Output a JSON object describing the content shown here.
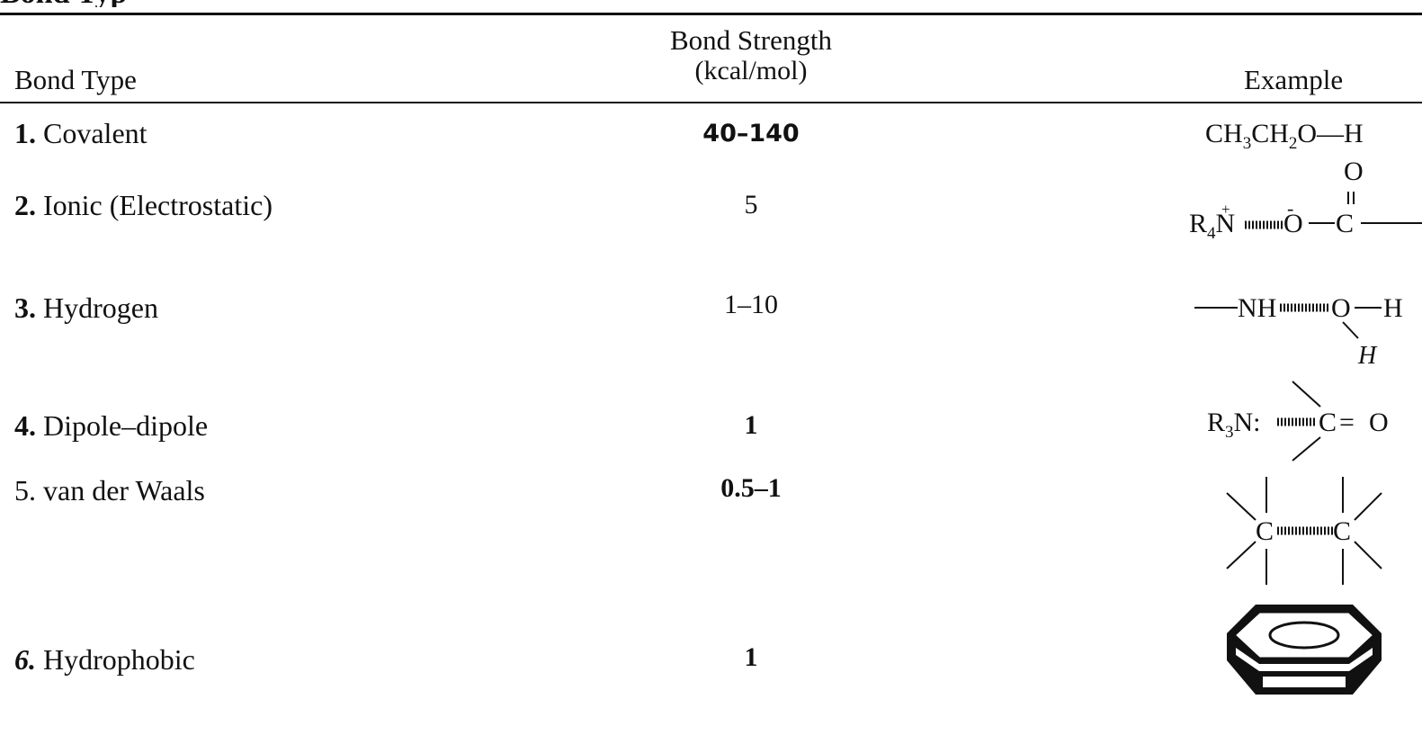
{
  "table": {
    "title_fragment": "Bond Typ",
    "headers": {
      "bond_type": "Bond Type",
      "strength_line1": "Bond Strength",
      "strength_line2": "(kcal/mol)",
      "example": "Example"
    },
    "rows": [
      {
        "num": "1.",
        "name": "Covalent",
        "strength": "40–140",
        "example": {
          "a": "CH",
          "a_sub": "3",
          "b": "CH",
          "b_sub": "2",
          "c": "O—H"
        }
      },
      {
        "num": "2.",
        "name": "Ionic (Electrostatic)",
        "strength": "5",
        "example": {
          "r": "R",
          "r_sub": "4",
          "n": "N",
          "o1": "O",
          "c": "C",
          "o2": "O",
          "plus": "+",
          "minus": "-"
        }
      },
      {
        "num": "3.",
        "name": "Hydrogen",
        "strength": "1–10",
        "example": {
          "nh": "NH",
          "o": "O",
          "h1": "H",
          "h2": "H"
        }
      },
      {
        "num": "4.",
        "name": "Dipole–dipole",
        "strength": "1",
        "example": {
          "r": "R",
          "r_sub": "3",
          "n": "N:",
          "c": "C",
          "eq": "=",
          "o": "O"
        }
      },
      {
        "num": "5.",
        "name": "van der Waals",
        "strength": "0.5–1",
        "example": {
          "c1": "C",
          "c2": "C"
        }
      },
      {
        "num": "6.",
        "name": "Hydrophobic",
        "strength": "1",
        "example": {}
      }
    ]
  }
}
